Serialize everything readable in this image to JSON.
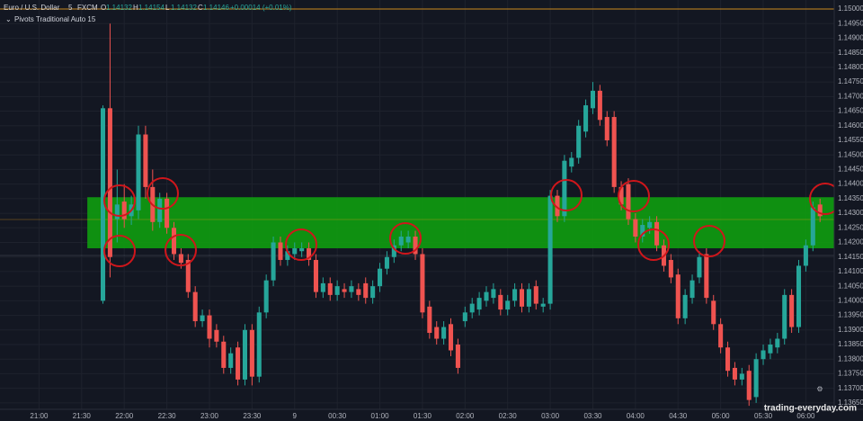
{
  "header": {
    "symbol": "Euro / U.S. Dollar",
    "interval": "5",
    "source": "FXCM",
    "ohlc": [
      {
        "label": "O",
        "value": "1.14132"
      },
      {
        "label": "H",
        "value": "1.14154"
      },
      {
        "label": "L",
        "value": "1.14132"
      },
      {
        "label": "C",
        "value": "1.14146"
      }
    ],
    "change": "+0.00014 (+0.01%)",
    "indicator": "Pivots Traditional Auto 15"
  },
  "watermark": "trading-everyday.com",
  "chart_data": {
    "type": "candlestick",
    "up_color": "#26a69a",
    "down_color": "#ef5350",
    "open": [
      1.14,
      1.1466,
      1.1428,
      1.1434,
      1.1429,
      1.1431,
      1.1457,
      1.1439,
      1.1427,
      1.1435,
      1.1425,
      1.1416,
      1.1414,
      1.1403,
      1.1393,
      1.1395,
      1.139,
      1.1386,
      1.1377,
      1.1384,
      1.1373,
      1.139,
      1.1374,
      1.1396,
      1.1407,
      1.142,
      1.1414,
      1.1416,
      1.1417,
      1.1418,
      1.1414,
      1.1403,
      1.1406,
      1.1402,
      1.1404,
      1.1403,
      1.1404,
      1.1406,
      1.1401,
      1.1405,
      1.1411,
      1.1415,
      1.1419,
      1.142,
      1.1422,
      1.1416,
      1.1398,
      1.1391,
      1.1387,
      1.1392,
      1.1385,
      1.1393,
      1.1396,
      1.1397,
      1.14,
      1.1401,
      1.1402,
      1.1397,
      1.14,
      1.1404,
      1.1398,
      1.1405,
      1.1398,
      1.1399,
      1.1436,
      1.1429,
      1.1446,
      1.1449,
      1.1458,
      1.1466,
      1.1472,
      1.1463,
      1.1463,
      1.1439,
      1.144,
      1.1428,
      1.1422,
      1.1425,
      1.1427,
      1.1419,
      1.1414,
      1.1409,
      1.1394,
      1.1401,
      1.1408,
      1.1416,
      1.14,
      1.1392,
      1.1384,
      1.1377,
      1.1373,
      1.1376,
      1.1367,
      1.138,
      1.1382,
      1.1384,
      1.1387,
      1.1402,
      1.1391,
      1.1412,
      1.1419,
      1.1433
    ],
    "high": [
      1.1467,
      1.1495,
      1.1445,
      1.144,
      1.1436,
      1.146,
      1.146,
      1.1445,
      1.1437,
      1.1437,
      1.1427,
      1.1418,
      1.1416,
      1.1405,
      1.1397,
      1.1397,
      1.1392,
      1.1388,
      1.1384,
      1.1386,
      1.1392,
      1.1392,
      1.1398,
      1.1409,
      1.1422,
      1.1422,
      1.1419,
      1.142,
      1.142,
      1.142,
      1.1416,
      1.1408,
      1.1408,
      1.1407,
      1.1406,
      1.1407,
      1.1406,
      1.1408,
      1.1407,
      1.1413,
      1.1417,
      1.1421,
      1.1424,
      1.1424,
      1.1424,
      1.1418,
      1.14,
      1.1393,
      1.1393,
      1.1394,
      1.1387,
      1.1398,
      1.1401,
      1.1403,
      1.1405,
      1.1406,
      1.1404,
      1.1402,
      1.1406,
      1.1406,
      1.1406,
      1.1407,
      1.1401,
      1.1438,
      1.1438,
      1.145,
      1.1451,
      1.1462,
      1.1469,
      1.1475,
      1.1474,
      1.1465,
      1.1465,
      1.1441,
      1.1442,
      1.143,
      1.1428,
      1.1429,
      1.1429,
      1.1421,
      1.1416,
      1.1411,
      1.1404,
      1.1409,
      1.1417,
      1.1418,
      1.1402,
      1.1394,
      1.1386,
      1.1379,
      1.1377,
      1.1378,
      1.1382,
      1.1385,
      1.1387,
      1.1389,
      1.1404,
      1.1404,
      1.1414,
      1.1421,
      1.1434,
      1.1435
    ],
    "low": [
      1.1399,
      1.1408,
      1.142,
      1.1425,
      1.1426,
      1.1428,
      1.1435,
      1.1424,
      1.1425,
      1.1423,
      1.1414,
      1.1411,
      1.1401,
      1.1391,
      1.1391,
      1.1384,
      1.1384,
      1.1375,
      1.1375,
      1.1371,
      1.1371,
      1.1371,
      1.1372,
      1.1394,
      1.1405,
      1.1412,
      1.1412,
      1.1414,
      1.1415,
      1.1412,
      1.1401,
      1.1401,
      1.14,
      1.14,
      1.1401,
      1.1401,
      1.14,
      1.1399,
      1.1399,
      1.1403,
      1.1409,
      1.1413,
      1.1417,
      1.1418,
      1.1414,
      1.1394,
      1.1387,
      1.1385,
      1.1385,
      1.1381,
      1.1375,
      1.1391,
      1.1394,
      1.1395,
      1.1398,
      1.1399,
      1.1395,
      1.1395,
      1.1398,
      1.1396,
      1.1396,
      1.1397,
      1.1396,
      1.1397,
      1.1427,
      1.1427,
      1.1444,
      1.1447,
      1.1456,
      1.1464,
      1.146,
      1.1453,
      1.1437,
      1.1431,
      1.1426,
      1.142,
      1.142,
      1.1423,
      1.1417,
      1.141,
      1.1406,
      1.1392,
      1.1392,
      1.1399,
      1.1406,
      1.1399,
      1.139,
      1.1382,
      1.1374,
      1.1371,
      1.1371,
      1.1364,
      1.1365,
      1.1378,
      1.138,
      1.1382,
      1.1385,
      1.1389,
      1.1389,
      1.141,
      1.1417,
      1.1427
    ],
    "close": [
      1.1466,
      1.1415,
      1.1433,
      1.1428,
      1.1433,
      1.1457,
      1.1439,
      1.1427,
      1.1435,
      1.1425,
      1.1416,
      1.1413,
      1.1403,
      1.1393,
      1.1395,
      1.1387,
      1.1386,
      1.1377,
      1.1382,
      1.1373,
      1.139,
      1.1374,
      1.1396,
      1.1407,
      1.142,
      1.1414,
      1.1417,
      1.1418,
      1.1418,
      1.1414,
      1.1403,
      1.1406,
      1.1402,
      1.1405,
      1.1403,
      1.1405,
      1.1402,
      1.1401,
      1.1405,
      1.1411,
      1.1415,
      1.1419,
      1.1422,
      1.1422,
      1.1416,
      1.1396,
      1.1389,
      1.1387,
      1.1391,
      1.1383,
      1.1377,
      1.1396,
      1.1399,
      1.1401,
      1.1403,
      1.1404,
      1.1397,
      1.14,
      1.1404,
      1.1398,
      1.1404,
      1.1399,
      1.1399,
      1.1436,
      1.1429,
      1.1448,
      1.1449,
      1.146,
      1.1467,
      1.1472,
      1.1462,
      1.1455,
      1.1439,
      1.1433,
      1.1428,
      1.1422,
      1.1426,
      1.1427,
      1.1419,
      1.1412,
      1.1408,
      1.1394,
      1.1402,
      1.1407,
      1.1415,
      1.1401,
      1.1392,
      1.1384,
      1.1376,
      1.1373,
      1.1375,
      1.1366,
      1.138,
      1.1383,
      1.1385,
      1.1387,
      1.1402,
      1.1391,
      1.1412,
      1.1419,
      1.1432,
      1.1429
    ],
    "zone": {
      "ylim": [
        1.1418,
        1.14355
      ],
      "x_from": -2.2,
      "color": "#0f9d0f"
    },
    "xlim": [
      -14.5,
      103
    ],
    "xticks": [
      {
        "value": -9,
        "label": "21:00"
      },
      {
        "value": -3,
        "label": "21:30"
      },
      {
        "value": 3,
        "label": "22:00"
      },
      {
        "value": 9,
        "label": "22:30"
      },
      {
        "value": 15,
        "label": "23:00"
      },
      {
        "value": 21,
        "label": "23:30"
      },
      {
        "value": 27,
        "label": "9"
      },
      {
        "value": 33,
        "label": "00:30"
      },
      {
        "value": 39,
        "label": "01:00"
      },
      {
        "value": 45,
        "label": "01:30"
      },
      {
        "value": 51,
        "label": "02:00"
      },
      {
        "value": 57,
        "label": "02:30"
      },
      {
        "value": 63,
        "label": "03:00"
      },
      {
        "value": 69,
        "label": "03:30"
      },
      {
        "value": 75,
        "label": "04:00"
      },
      {
        "value": 81,
        "label": "04:30"
      },
      {
        "value": 87,
        "label": "05:00"
      },
      {
        "value": 93,
        "label": "05:30"
      },
      {
        "value": 99,
        "label": "06:00"
      }
    ],
    "ylim": [
      1.13628,
      1.15031
    ],
    "yticks": [
      {
        "value": 1.15,
        "label": "1.15000"
      },
      {
        "value": 1.1495,
        "label": "1.14950"
      },
      {
        "value": 1.149,
        "label": "1.14900"
      },
      {
        "value": 1.1485,
        "label": "1.14850"
      },
      {
        "value": 1.148,
        "label": "1.14800"
      },
      {
        "value": 1.1475,
        "label": "1.14750"
      },
      {
        "value": 1.147,
        "label": "1.14700"
      },
      {
        "value": 1.1465,
        "label": "1.14650"
      },
      {
        "value": 1.146,
        "label": "1.14600"
      },
      {
        "value": 1.1455,
        "label": "1.14550"
      },
      {
        "value": 1.145,
        "label": "1.14500"
      },
      {
        "value": 1.1445,
        "label": "1.14450"
      },
      {
        "value": 1.144,
        "label": "1.14400"
      },
      {
        "value": 1.1435,
        "label": "1.14350"
      },
      {
        "value": 1.143,
        "label": "1.14300"
      },
      {
        "value": 1.1425,
        "label": "1.14250"
      },
      {
        "value": 1.142,
        "label": "1.14200"
      },
      {
        "value": 1.1415,
        "label": "1.14150"
      },
      {
        "value": 1.141,
        "label": "1.14100"
      },
      {
        "value": 1.1405,
        "label": "1.14050"
      },
      {
        "value": 1.14,
        "label": "1.14000"
      },
      {
        "value": 1.1395,
        "label": "1.13950"
      },
      {
        "value": 1.139,
        "label": "1.13900"
      },
      {
        "value": 1.1385,
        "label": "1.13850"
      },
      {
        "value": 1.138,
        "label": "1.13800"
      },
      {
        "value": 1.1375,
        "label": "1.13750"
      },
      {
        "value": 1.137,
        "label": "1.13700"
      },
      {
        "value": 1.1365,
        "label": "1.13650"
      }
    ],
    "grid": true
  }
}
